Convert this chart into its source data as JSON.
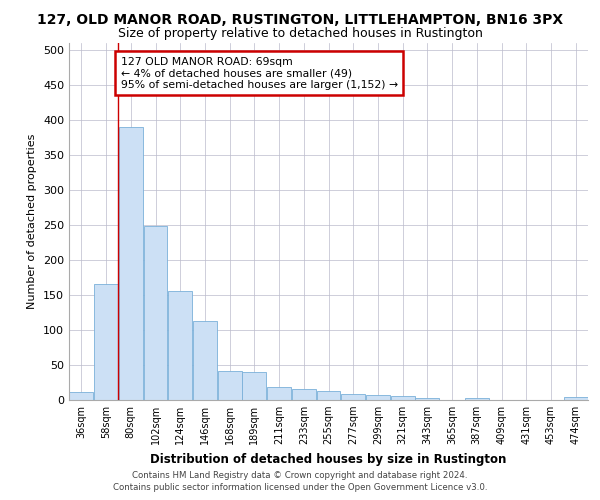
{
  "title_line1": "127, OLD MANOR ROAD, RUSTINGTON, LITTLEHAMPTON, BN16 3PX",
  "title_line2": "Size of property relative to detached houses in Rustington",
  "xlabel": "Distribution of detached houses by size in Rustington",
  "ylabel": "Number of detached properties",
  "footer_line1": "Contains HM Land Registry data © Crown copyright and database right 2024.",
  "footer_line2": "Contains public sector information licensed under the Open Government Licence v3.0.",
  "categories": [
    "36sqm",
    "58sqm",
    "80sqm",
    "102sqm",
    "124sqm",
    "146sqm",
    "168sqm",
    "189sqm",
    "211sqm",
    "233sqm",
    "255sqm",
    "277sqm",
    "299sqm",
    "321sqm",
    "343sqm",
    "365sqm",
    "387sqm",
    "409sqm",
    "431sqm",
    "453sqm",
    "474sqm"
  ],
  "values": [
    12,
    165,
    390,
    248,
    156,
    113,
    42,
    40,
    18,
    15,
    13,
    8,
    7,
    5,
    3,
    0,
    3,
    0,
    0,
    0,
    4
  ],
  "bar_color": "#cce0f5",
  "bar_edge_color": "#7ab0d9",
  "red_line_x": 1.5,
  "annotation_line1": "127 OLD MANOR ROAD: 69sqm",
  "annotation_line2": "← 4% of detached houses are smaller (49)",
  "annotation_line3": "95% of semi-detached houses are larger (1,152) →",
  "annotation_box_color": "#ffffff",
  "annotation_box_edge": "#cc0000",
  "ylim": [
    0,
    510
  ],
  "yticks": [
    0,
    50,
    100,
    150,
    200,
    250,
    300,
    350,
    400,
    450,
    500
  ],
  "background_color": "#ffffff",
  "grid_color": "#bbbbcc"
}
